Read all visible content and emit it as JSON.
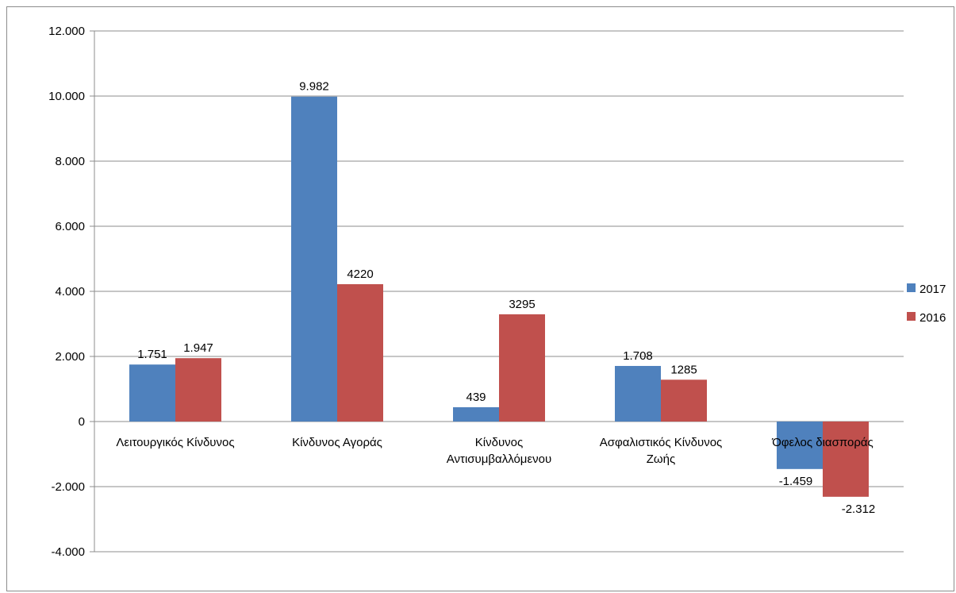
{
  "chart_data": {
    "type": "bar",
    "title": "",
    "xlabel": "",
    "ylabel": "",
    "categories": [
      [
        "Λειτουργικός Κίνδυνος"
      ],
      [
        "Κίνδυνος Αγοράς"
      ],
      [
        "Κίνδυνος",
        "Αντισυμβαλλόμενου"
      ],
      [
        "Ασφαλιστικός Κίνδυνος",
        "Ζωής"
      ],
      [
        "Όφελος διασποράς"
      ]
    ],
    "series": [
      {
        "name": "2017",
        "color": "#4f81bd",
        "values": [
          1751,
          9982,
          439,
          1708,
          -1459
        ],
        "labels": [
          "1.751",
          "9.982",
          "439",
          "1.708",
          "-1.459"
        ]
      },
      {
        "name": "2016",
        "color": "#c0504d",
        "values": [
          1947,
          4220,
          3295,
          1285,
          -2312
        ],
        "labels": [
          "1.947",
          "4220",
          "3295",
          "1285",
          "-2.312"
        ]
      }
    ],
    "ylim": [
      -4000,
      12000
    ],
    "yticks": [
      12000,
      10000,
      8000,
      6000,
      4000,
      2000,
      0,
      -2000,
      -4000
    ],
    "ytick_labels": [
      "12.000",
      "10.000",
      "8.000",
      "6.000",
      "4.000",
      "2.000",
      "0",
      "-2.000",
      "-4.000"
    ],
    "grid": true,
    "legend_position": "right"
  }
}
